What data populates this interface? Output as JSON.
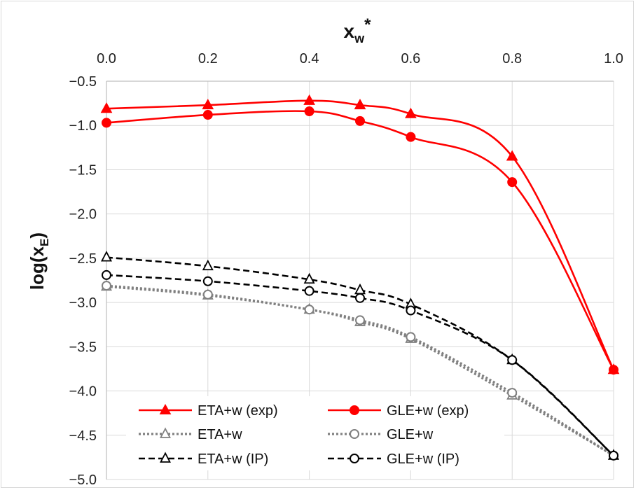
{
  "chart_data": {
    "type": "line",
    "x_axis": {
      "label_main": "x",
      "label_sub": "w",
      "label_sup": "*",
      "position": "top",
      "range": [
        0,
        1
      ],
      "ticks": [
        "0.0",
        "0.2",
        "0.4",
        "0.6",
        "0.8",
        "1.0"
      ]
    },
    "y_axis": {
      "label_main": "log(x",
      "label_sub": "E",
      "label_end": ")",
      "range": [
        -5,
        -0.5
      ],
      "ticks": [
        "−0.5",
        "−1.0",
        "−1.5",
        "−2.0",
        "−2.5",
        "−3.0",
        "−3.5",
        "−4.0",
        "−4.5",
        "−5.0"
      ]
    },
    "grid": true,
    "legend_placement": "bottom-left",
    "series": [
      {
        "name": "ETA+w (exp)",
        "color": "#ff0000",
        "line_style": "solid",
        "marker": "filled-triangle",
        "x": [
          0.0,
          0.2,
          0.4,
          0.5,
          0.6,
          0.8,
          1.0
        ],
        "y": [
          -0.81,
          -0.77,
          -0.72,
          -0.77,
          -0.87,
          -1.35,
          -3.76
        ]
      },
      {
        "name": "GLE+w (exp)",
        "color": "#ff0000",
        "line_style": "solid",
        "marker": "filled-circle",
        "x": [
          0.0,
          0.2,
          0.4,
          0.5,
          0.6,
          0.8,
          1.0
        ],
        "y": [
          -0.97,
          -0.88,
          -0.84,
          -0.95,
          -1.13,
          -1.64,
          -3.76
        ]
      },
      {
        "name": "ETA+w",
        "color": "#808080",
        "line_style": "dotted",
        "marker": "open-triangle",
        "x": [
          0.0,
          0.2,
          0.4,
          0.5,
          0.6,
          0.8,
          1.0
        ],
        "y": [
          -2.82,
          -2.92,
          -3.08,
          -3.22,
          -3.41,
          -4.05,
          -4.73
        ]
      },
      {
        "name": "GLE+w",
        "color": "#808080",
        "line_style": "dotted",
        "marker": "open-circle",
        "x": [
          0.0,
          0.2,
          0.4,
          0.5,
          0.6,
          0.8,
          1.0
        ],
        "y": [
          -2.81,
          -2.91,
          -3.08,
          -3.2,
          -3.39,
          -4.02,
          -4.73
        ]
      },
      {
        "name": "ETA+w (IP)",
        "color": "#000000",
        "line_style": "dashed",
        "marker": "open-triangle",
        "x": [
          0.0,
          0.2,
          0.4,
          0.5,
          0.6,
          0.8,
          1.0
        ],
        "y": [
          -2.49,
          -2.59,
          -2.74,
          -2.86,
          -3.02,
          -3.65,
          -4.73
        ]
      },
      {
        "name": "GLE+w  (IP)",
        "color": "#000000",
        "line_style": "dashed",
        "marker": "open-circle",
        "x": [
          0.0,
          0.2,
          0.4,
          0.5,
          0.6,
          0.8,
          1.0
        ],
        "y": [
          -2.69,
          -2.76,
          -2.87,
          -2.95,
          -3.09,
          -3.65,
          -4.73
        ]
      }
    ]
  }
}
